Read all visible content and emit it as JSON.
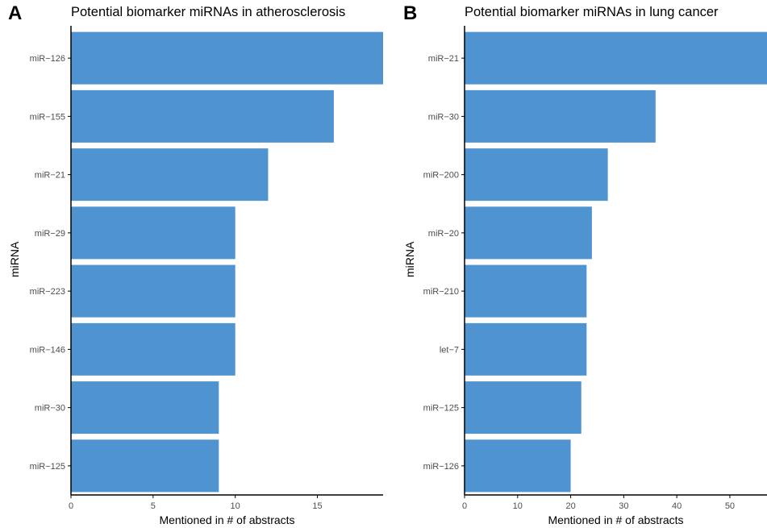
{
  "colors": {
    "bar": "#4f94d0",
    "axis": "#000000",
    "tick_text": "#4d4d4d"
  },
  "chart_data": [
    {
      "type": "bar",
      "orientation": "horizontal",
      "panel_label": "A",
      "title": "Potential biomarker miRNAs in atherosclerosis",
      "xlabel": "Mentioned in # of abstracts",
      "ylabel": "miRNA",
      "categories": [
        "miR−126",
        "miR−155",
        "miR−21",
        "miR−29",
        "miR−223",
        "miR−146",
        "miR−30",
        "miR−125"
      ],
      "values": [
        19,
        16,
        12,
        10,
        10,
        10,
        9,
        9
      ],
      "xlim": [
        0,
        19
      ],
      "xticks": [
        0,
        5,
        10,
        15
      ],
      "grid": false
    },
    {
      "type": "bar",
      "orientation": "horizontal",
      "panel_label": "B",
      "title": "Potential biomarker miRNAs in lung cancer",
      "xlabel": "Mentioned in # of abstracts",
      "ylabel": "miRNA",
      "categories": [
        "miR−21",
        "miR−30",
        "miR−200",
        "miR−20",
        "miR−210",
        "let−7",
        "miR−125",
        "miR−126"
      ],
      "values": [
        57,
        36,
        27,
        24,
        23,
        23,
        22,
        20
      ],
      "xlim": [
        0,
        57
      ],
      "xticks": [
        0,
        10,
        20,
        30,
        40,
        50
      ],
      "grid": false
    }
  ]
}
